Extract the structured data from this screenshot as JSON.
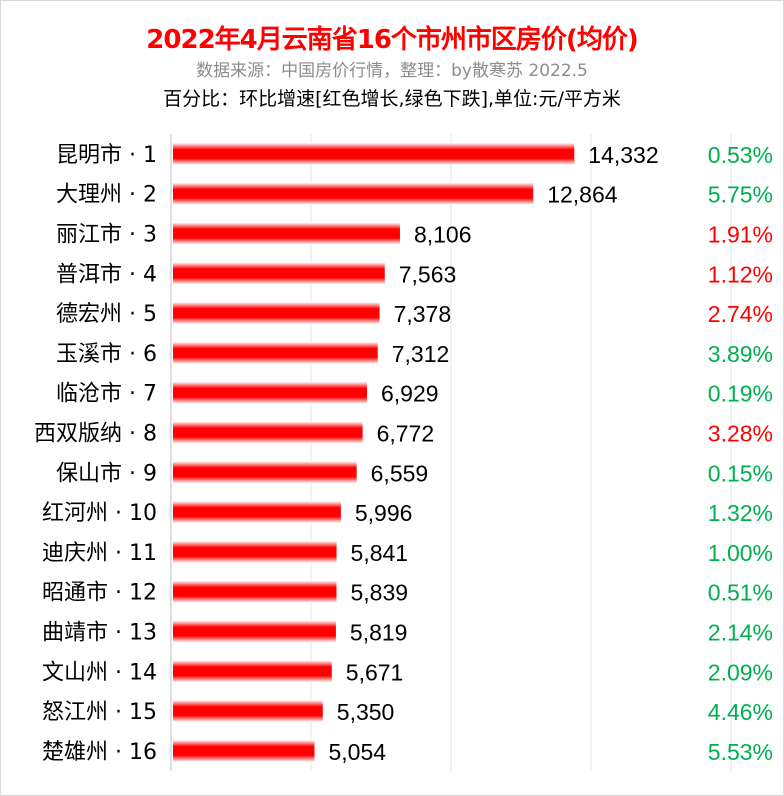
{
  "title": "2022年4月云南省16个市州市区房价(均价)",
  "subtitle": "数据来源：中国房价行情，整理：by散寒苏 2022.5",
  "note": "百分比：环比增速[红色增长,绿色下跌],单位:元/平方米",
  "colors": {
    "bar": "#ff0000",
    "up": "#ff0000",
    "down": "#00b050",
    "grid": "#e6e6e6"
  },
  "chart_data": {
    "type": "bar",
    "orientation": "horizontal",
    "xlim": [
      0,
      20000
    ],
    "grid": true,
    "categories": [
      "昆明市 · 1",
      "大理州 · 2",
      "丽江市 · 3",
      "普洱市 · 4",
      "德宏州 · 5",
      "玉溪市 · 6",
      "临沧市 · 7",
      "西双版纳 · 8",
      "保山市 · 9",
      "红河州 · 10",
      "迪庆州 · 11",
      "昭通市 · 12",
      "曲靖市 · 13",
      "文山州 · 14",
      "怒江州 · 15",
      "楚雄州 · 16"
    ],
    "values": [
      14332,
      12864,
      8106,
      7563,
      7378,
      7312,
      6929,
      6772,
      6559,
      5996,
      5841,
      5839,
      5819,
      5671,
      5350,
      5054
    ],
    "value_labels": [
      "14,332",
      "12,864",
      "8,106",
      "7,563",
      "7,378",
      "7,312",
      "6,929",
      "6,772",
      "6,559",
      "5,996",
      "5,841",
      "5,839",
      "5,819",
      "5,671",
      "5,350",
      "5,054"
    ],
    "mom_change": [
      "0.53%",
      "5.75%",
      "1.91%",
      "1.12%",
      "2.74%",
      "3.89%",
      "0.19%",
      "3.28%",
      "0.15%",
      "1.32%",
      "1.00%",
      "0.51%",
      "2.14%",
      "2.09%",
      "4.46%",
      "5.53%"
    ],
    "mom_direction": [
      "down",
      "down",
      "up",
      "up",
      "up",
      "down",
      "down",
      "up",
      "down",
      "down",
      "down",
      "down",
      "down",
      "down",
      "down",
      "down"
    ]
  }
}
